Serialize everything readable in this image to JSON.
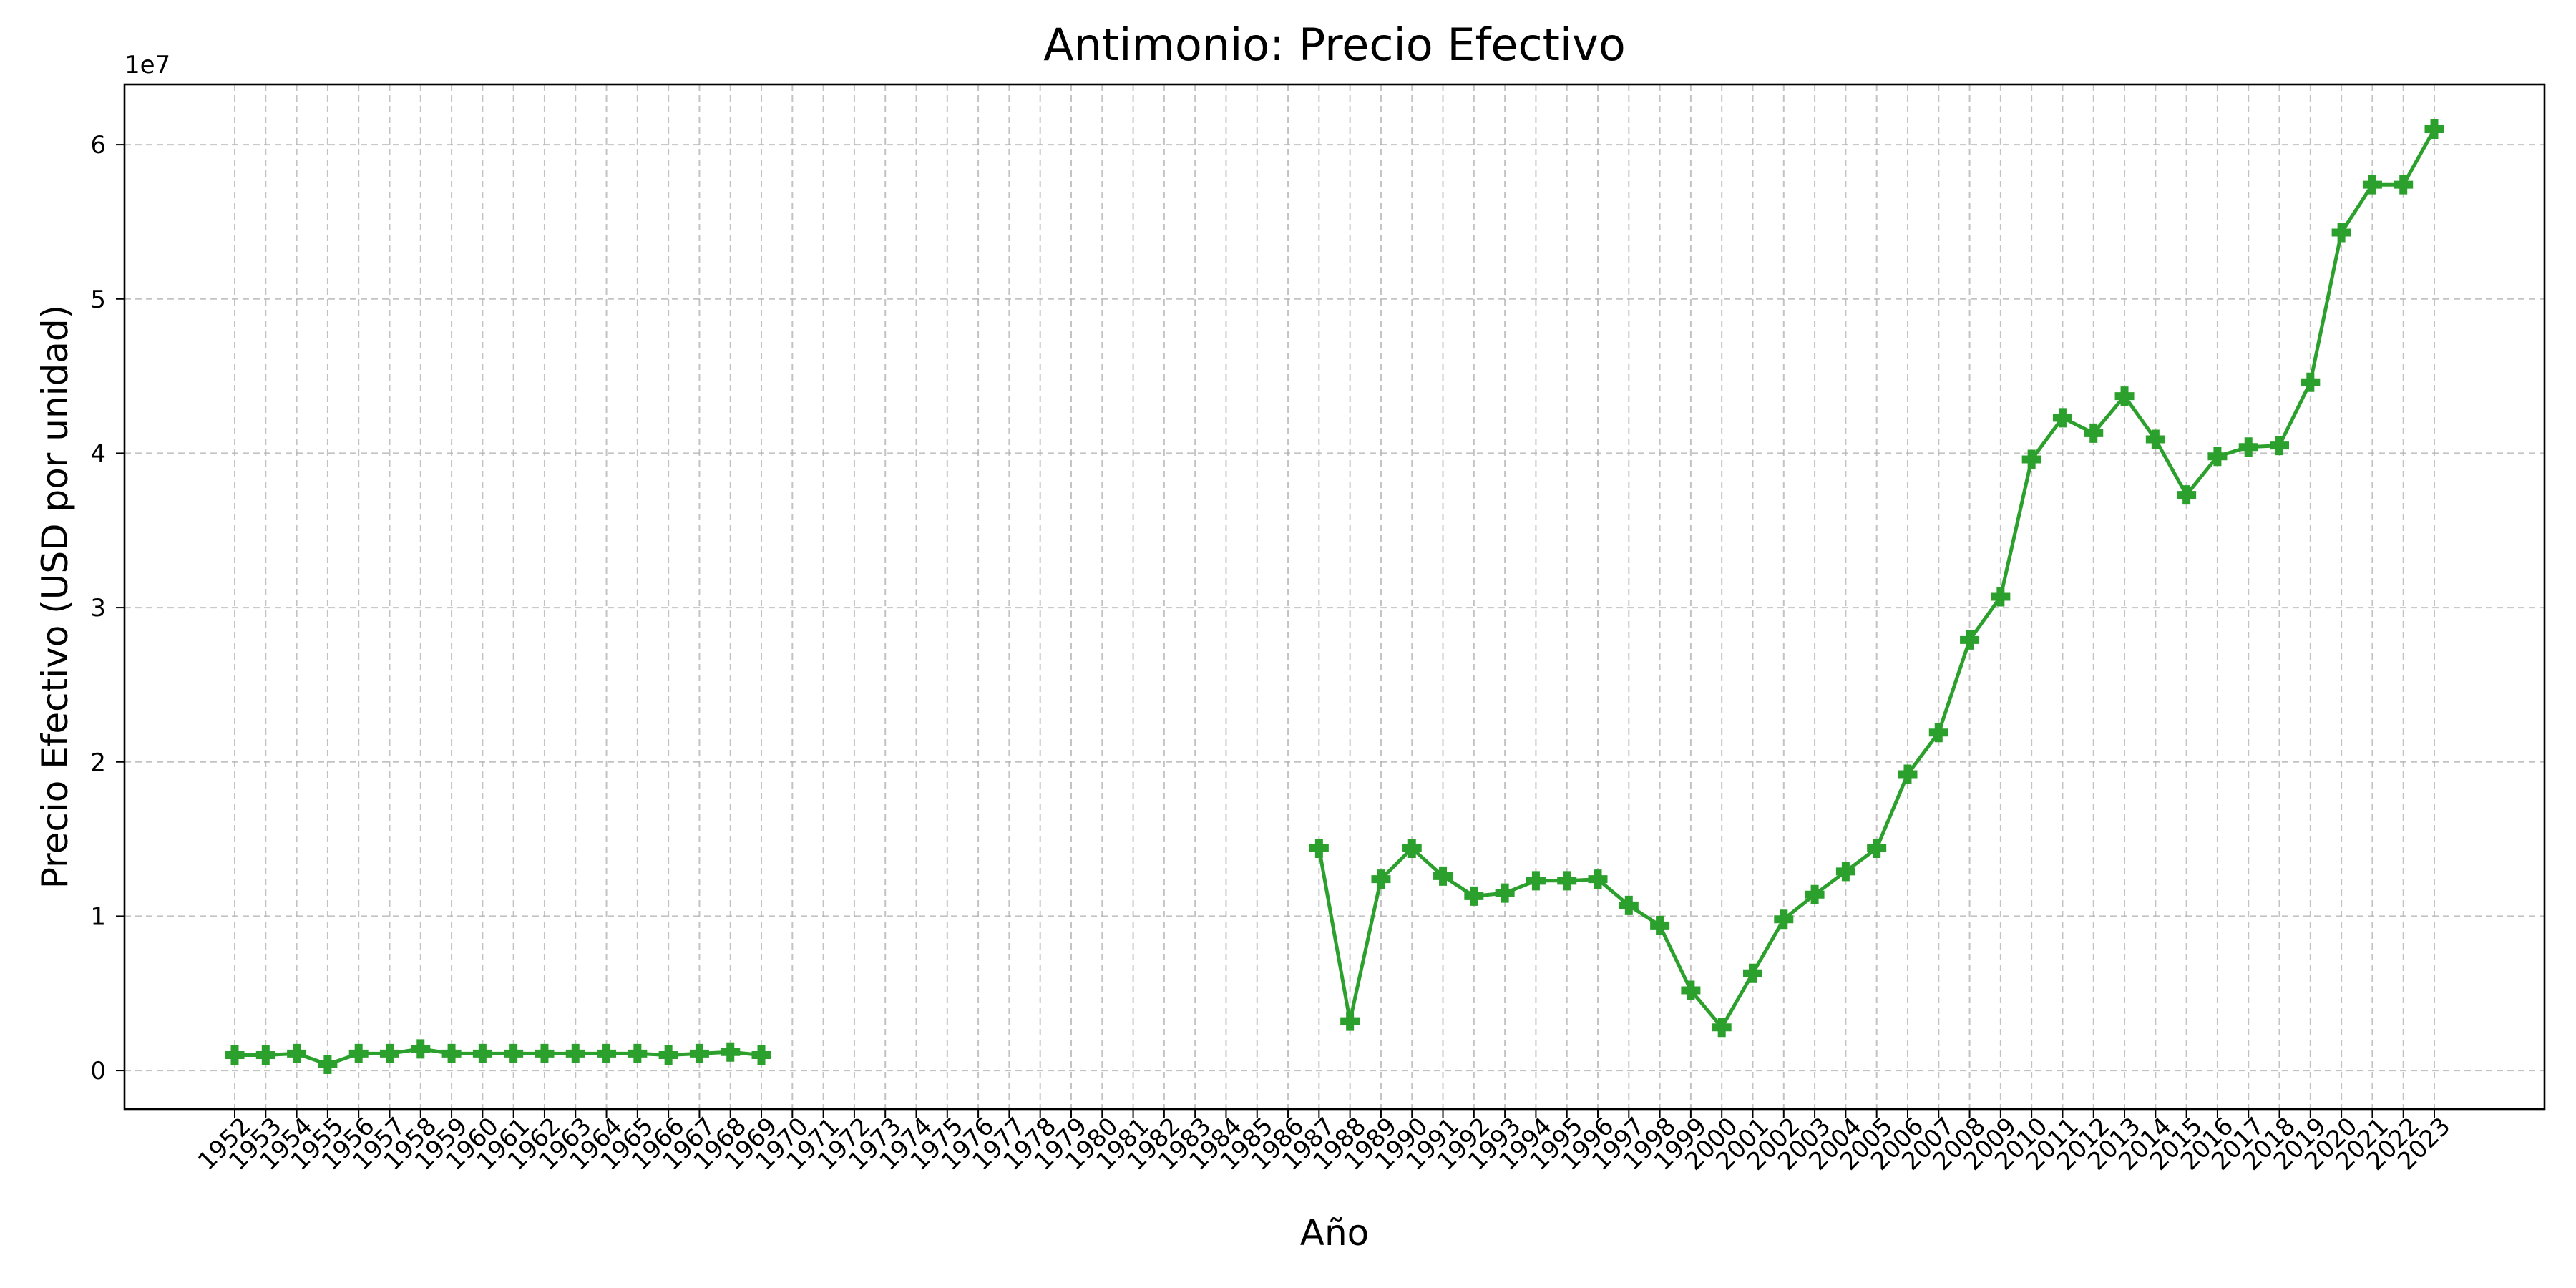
{
  "chart_data": {
    "type": "line",
    "title": "Antimonio: Precio Efectivo",
    "xlabel": "Año",
    "ylabel": "Precio Efectivo (USD por unidad)",
    "y_offset_label": "1e7",
    "ylim": [
      -2500000,
      63900000
    ],
    "y_ticks": [
      0,
      10000000,
      20000000,
      30000000,
      40000000,
      50000000,
      60000000
    ],
    "y_tick_labels": [
      "0",
      "1",
      "2",
      "3",
      "4",
      "5",
      "6"
    ],
    "grid": true,
    "line_color": "#2ca02c",
    "marker": "plus-filled",
    "x": [
      "1952",
      "1953",
      "1954",
      "1955",
      "1956",
      "1957",
      "1958",
      "1959",
      "1960",
      "1961",
      "1962",
      "1963",
      "1964",
      "1965",
      "1966",
      "1967",
      "1968",
      "1969",
      "1970",
      "1971",
      "1972",
      "1973",
      "1974",
      "1975",
      "1976",
      "1977",
      "1978",
      "1979",
      "1980",
      "1981",
      "1982",
      "1983",
      "1984",
      "1985",
      "1986",
      "1987",
      "1988",
      "1989",
      "1990",
      "1991",
      "1992",
      "1993",
      "1994",
      "1995",
      "1996",
      "1997",
      "1998",
      "1999",
      "2000",
      "2001",
      "2002",
      "2003",
      "2004",
      "2005",
      "2006",
      "2007",
      "2008",
      "2009",
      "2010",
      "2011",
      "2012",
      "2013",
      "2014",
      "2015",
      "2016",
      "2017",
      "2018",
      "2019",
      "2020",
      "2021",
      "2022",
      "2023"
    ],
    "series": [
      {
        "values": [
          1000000,
          1000000,
          1100000,
          400000,
          1100000,
          1100000,
          1400000,
          1100000,
          1100000,
          1100000,
          1100000,
          1100000,
          1100000,
          1100000,
          1000000,
          1100000,
          1200000,
          1000000,
          null,
          null,
          null,
          null,
          null,
          null,
          null,
          null,
          null,
          null,
          null,
          null,
          null,
          null,
          null,
          null,
          null,
          14400000,
          3200000,
          12400000,
          14400000,
          12600000,
          11300000,
          11500000,
          12300000,
          12300000,
          12400000,
          10700000,
          9400000,
          5200000,
          2800000,
          6300000,
          9800000,
          11400000,
          12900000,
          14400000,
          19200000,
          21900000,
          27900000,
          30700000,
          39600000,
          42300000,
          41300000,
          43700000,
          40900000,
          37300000,
          39800000,
          40400000,
          40500000,
          44600000,
          54300000,
          57400000,
          57400000,
          61000000
        ]
      }
    ]
  }
}
